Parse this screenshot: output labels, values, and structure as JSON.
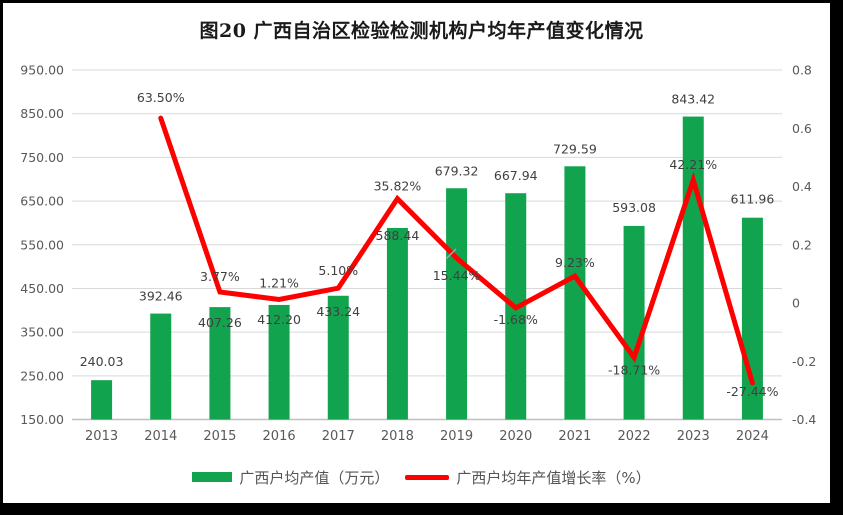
{
  "title": "图20 广西自治区检验检测机构户均年产值变化情况",
  "legend": {
    "bar_label": "广西户均产值（万元）",
    "line_label": "广西户均年产值增长率（%）"
  },
  "colors": {
    "bar": "#12A34F",
    "line": "#FF0000",
    "grid": "#D9D9D9",
    "axis_line": "#BFBFBF",
    "axis_text": "#595959",
    "label_text": "#404040",
    "leader_line": "#A6A6A6",
    "frame": "#000000"
  },
  "chart_data": {
    "type": "combo-bar-line",
    "title": "图20 广西自治区检验检测机构户均年产值变化情况",
    "categories": [
      "2013",
      "2014",
      "2015",
      "2016",
      "2017",
      "2018",
      "2019",
      "2020",
      "2021",
      "2022",
      "2023",
      "2024"
    ],
    "series": [
      {
        "name": "广西户均产值（万元）",
        "type": "bar",
        "axis": "left",
        "color": "#12A34F",
        "values": [
          240.03,
          392.46,
          407.26,
          412.2,
          433.24,
          588.44,
          679.32,
          667.94,
          729.59,
          593.08,
          843.42,
          611.96
        ],
        "data_labels": [
          "240.03",
          "392.46",
          "407.26",
          "412.20",
          "433.24",
          "588.44",
          "679.32",
          "667.94",
          "729.59",
          "593.08",
          "843.42",
          "611.96"
        ]
      },
      {
        "name": "广西户均年产值增长率（%）",
        "type": "line",
        "axis": "right",
        "color": "#FF0000",
        "values": [
          null,
          0.635,
          0.0377,
          0.0121,
          0.051,
          0.3582,
          0.1544,
          -0.0168,
          0.0923,
          -0.1871,
          0.4221,
          -0.2744
        ],
        "data_labels": [
          "",
          "63.50%",
          "3.77%",
          "1.21%",
          "5.10%",
          "35.82%",
          "15.44%",
          "-1.68%",
          "9.23%",
          "-18.71%",
          "42.21%",
          "-27.44%"
        ]
      }
    ],
    "left_axis": {
      "min": 150,
      "max": 950,
      "step": 100,
      "ticks": [
        "950.00",
        "850.00",
        "750.00",
        "650.00",
        "550.00",
        "450.00",
        "350.00",
        "250.00",
        "150.00"
      ]
    },
    "right_axis": {
      "min": -0.4,
      "max": 0.8,
      "step": 0.2,
      "ticks": [
        "0.8",
        "0.6",
        "0.4",
        "0.2",
        "0",
        "-0.2",
        "-0.4"
      ]
    },
    "grid": true,
    "legend_position": "bottom",
    "layout": {
      "bar_label_dy": [
        -18,
        -17,
        16,
        15,
        16,
        8,
        -17,
        -17,
        -17,
        -18,
        -17,
        -18
      ],
      "line_label_dy": [
        0,
        -20,
        -15,
        -16,
        -17,
        -12,
        18,
        12,
        -13,
        13,
        -15,
        9
      ]
    }
  }
}
